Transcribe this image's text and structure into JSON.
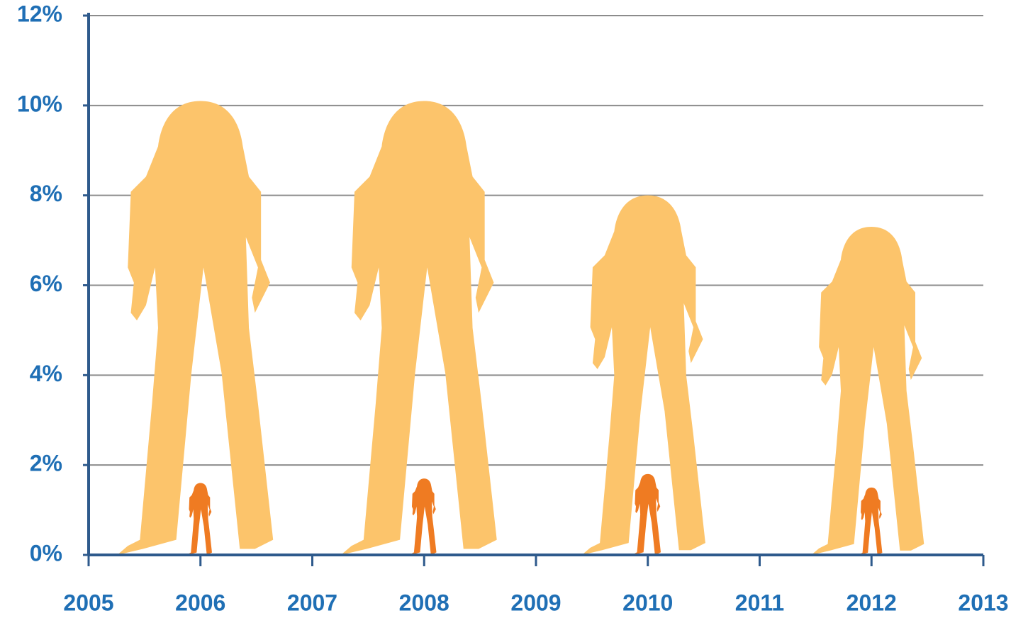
{
  "chart_data": {
    "type": "pictogram",
    "x": [
      2006,
      2008,
      2010,
      2012
    ],
    "series": [
      {
        "color": "#fcc46b",
        "values": [
          10.1,
          10.1,
          8.0,
          7.3
        ]
      },
      {
        "color": "#ef7b22",
        "values": [
          1.6,
          1.7,
          1.8,
          1.5
        ]
      }
    ],
    "xlim": [
      2005,
      2013
    ],
    "xticks": [
      2005,
      2006,
      2007,
      2008,
      2009,
      2010,
      2011,
      2012,
      2013
    ],
    "ylim": [
      0,
      12
    ],
    "yticks": [
      {
        "value": 0,
        "label": "0%"
      },
      {
        "value": 2,
        "label": "2%"
      },
      {
        "value": 4,
        "label": "4%"
      },
      {
        "value": 6,
        "label": "6%"
      },
      {
        "value": 8,
        "label": "8%"
      },
      {
        "value": 10,
        "label": "10%"
      },
      {
        "value": 12,
        "label": "12%"
      }
    ],
    "grid": true
  }
}
